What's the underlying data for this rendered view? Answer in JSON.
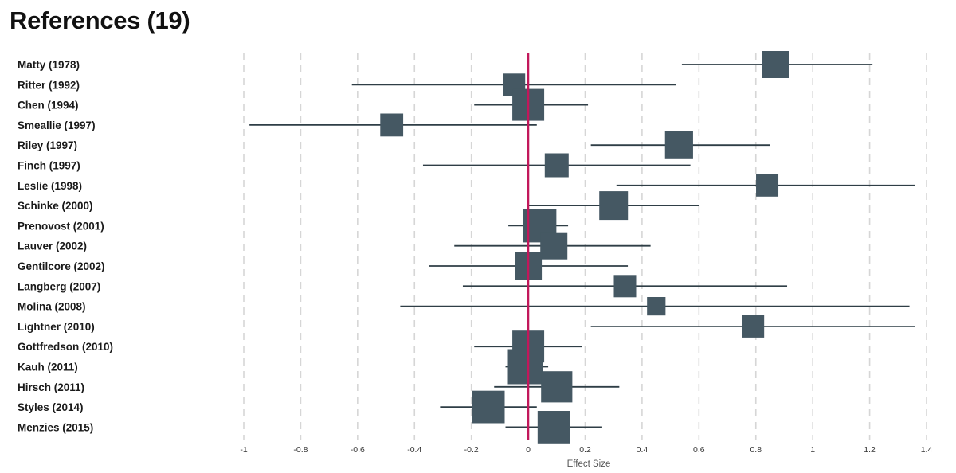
{
  "title": "References (19)",
  "chart_data": {
    "type": "forest",
    "xlabel": "Effect Size",
    "xlim": [
      -1,
      1.4
    ],
    "xticks": [
      -1,
      -0.8,
      -0.6,
      -0.4,
      -0.2,
      0,
      0.2,
      0.4,
      0.6,
      0.8,
      1,
      1.2,
      1.4
    ],
    "xtick_labels": [
      "-1",
      "-0.8",
      "-0.6",
      "-0.4",
      "-0.2",
      "0",
      "0.2",
      "0.4",
      "0.6",
      "0.8",
      "1",
      "1.2",
      "1.4"
    ],
    "reference_line": 0,
    "grid": "vertical dashed",
    "colors": {
      "marker": "#455863",
      "ci_line": "#2f3e46",
      "reference_line": "#c2185b",
      "grid": "#d6d6d6"
    },
    "studies": [
      {
        "label": "Matty (1978)",
        "effect": 0.87,
        "ci_low": 0.54,
        "ci_high": 1.21,
        "weight": 0.55
      },
      {
        "label": "Ritter (1992)",
        "effect": -0.05,
        "ci_low": -0.62,
        "ci_high": 0.52,
        "weight": 0.4
      },
      {
        "label": "Chen (1994)",
        "effect": 0.0,
        "ci_low": -0.19,
        "ci_high": 0.21,
        "weight": 0.7
      },
      {
        "label": "Smeallie (1997)",
        "effect": -0.48,
        "ci_low": -0.98,
        "ci_high": 0.03,
        "weight": 0.42
      },
      {
        "label": "Riley (1997)",
        "effect": 0.53,
        "ci_low": 0.22,
        "ci_high": 0.85,
        "weight": 0.58
      },
      {
        "label": "Finch (1997)",
        "effect": 0.1,
        "ci_low": -0.37,
        "ci_high": 0.57,
        "weight": 0.45
      },
      {
        "label": "Leslie (1998)",
        "effect": 0.84,
        "ci_low": 0.31,
        "ci_high": 1.36,
        "weight": 0.4
      },
      {
        "label": "Schinke (2000)",
        "effect": 0.3,
        "ci_low": 0.0,
        "ci_high": 0.6,
        "weight": 0.6
      },
      {
        "label": "Prenovost (2001)",
        "effect": 0.04,
        "ci_low": -0.07,
        "ci_high": 0.14,
        "weight": 0.75
      },
      {
        "label": "Lauver (2002)",
        "effect": 0.09,
        "ci_low": -0.26,
        "ci_high": 0.43,
        "weight": 0.55
      },
      {
        "label": "Gentilcore (2002)",
        "effect": 0.0,
        "ci_low": -0.35,
        "ci_high": 0.35,
        "weight": 0.55
      },
      {
        "label": "Langberg (2007)",
        "effect": 0.34,
        "ci_low": -0.23,
        "ci_high": 0.91,
        "weight": 0.4
      },
      {
        "label": "Molina (2008)",
        "effect": 0.45,
        "ci_low": -0.45,
        "ci_high": 1.34,
        "weight": 0.28
      },
      {
        "label": "Lightner (2010)",
        "effect": 0.79,
        "ci_low": 0.22,
        "ci_high": 1.36,
        "weight": 0.4
      },
      {
        "label": "Gottfredson (2010)",
        "effect": 0.0,
        "ci_low": -0.19,
        "ci_high": 0.19,
        "weight": 0.7
      },
      {
        "label": "Kauh (2011)",
        "effect": -0.01,
        "ci_low": -0.08,
        "ci_high": 0.07,
        "weight": 0.8
      },
      {
        "label": "Hirsch (2011)",
        "effect": 0.1,
        "ci_low": -0.12,
        "ci_high": 0.32,
        "weight": 0.68
      },
      {
        "label": "Styles (2014)",
        "effect": -0.14,
        "ci_low": -0.31,
        "ci_high": 0.03,
        "weight": 0.72
      },
      {
        "label": "Menzies (2015)",
        "effect": 0.09,
        "ci_low": -0.08,
        "ci_high": 0.26,
        "weight": 0.72
      }
    ]
  }
}
